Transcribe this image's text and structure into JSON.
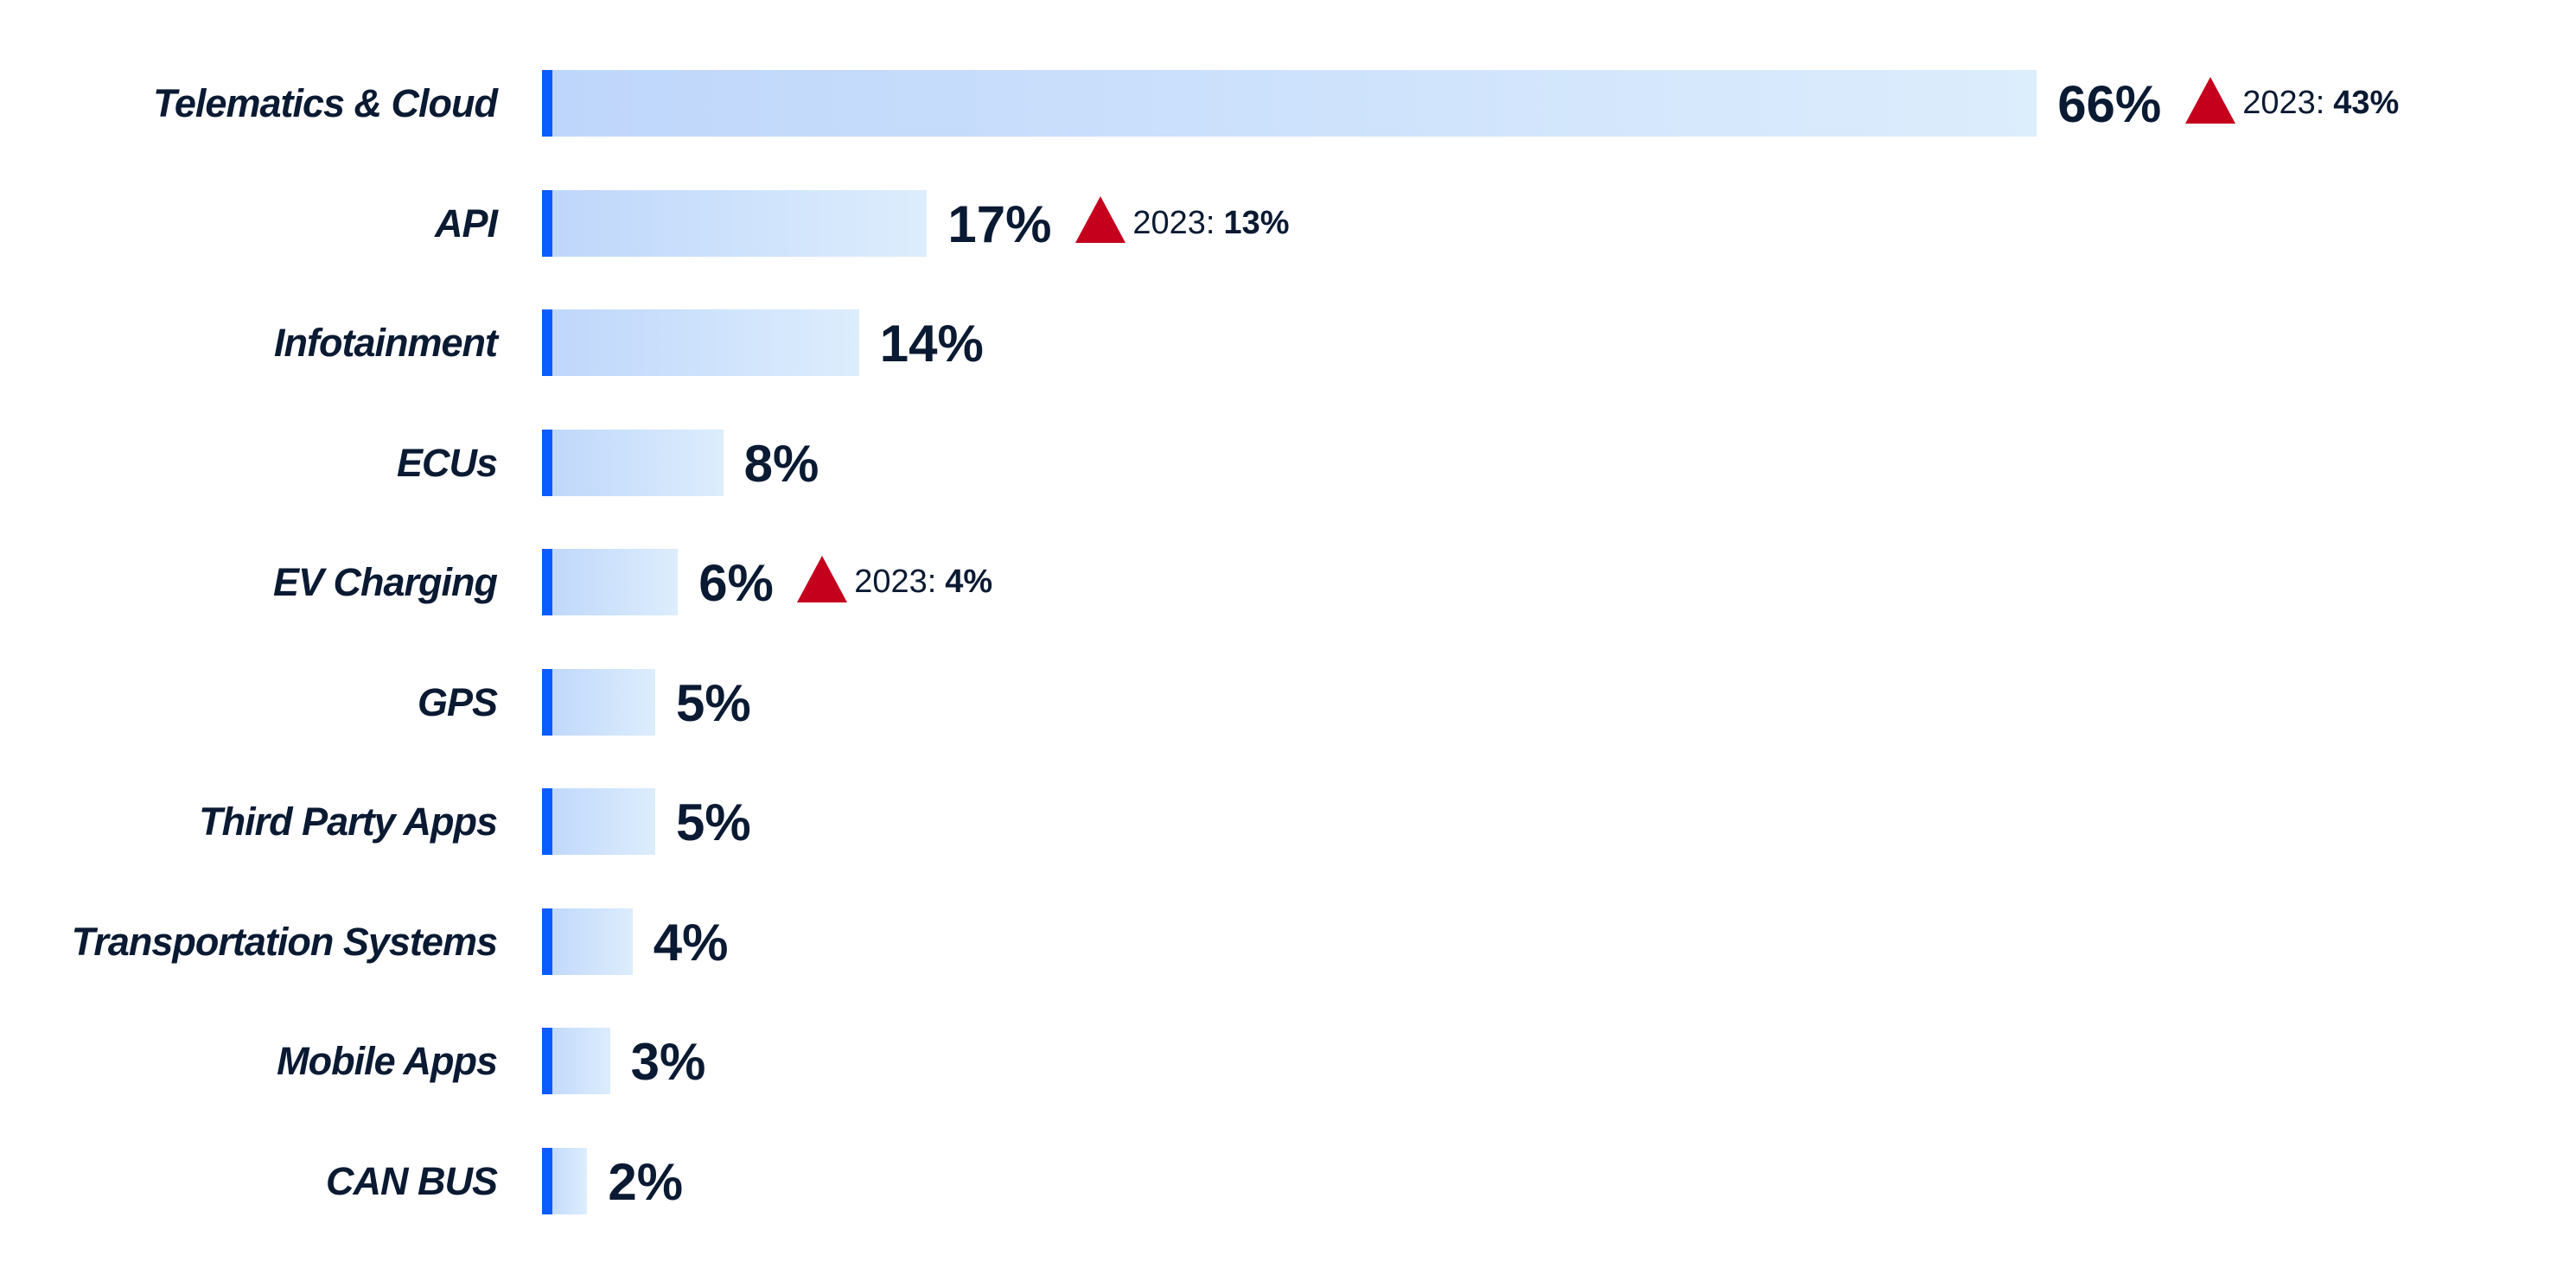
{
  "chart_data": {
    "type": "bar",
    "orientation": "horizontal",
    "categories": [
      "Telematics & Cloud",
      "API",
      "Infotainment",
      "ECUs",
      "EV Charging",
      "GPS",
      "Third Party Apps",
      "Transportation Systems",
      "Mobile Apps",
      "CAN BUS"
    ],
    "values": [
      66,
      17,
      14,
      8,
      6,
      5,
      5,
      4,
      3,
      2
    ],
    "value_labels": [
      "66%",
      "17%",
      "14%",
      "8%",
      "6%",
      "5%",
      "5%",
      "4%",
      "3%",
      "2%"
    ],
    "unit": "%",
    "comparisons": [
      {
        "category_index": 0,
        "year_label": "2023:",
        "value_label": "43%",
        "value": 43,
        "trend": "up"
      },
      {
        "category_index": 1,
        "year_label": "2023:",
        "value_label": "13%",
        "value": 13,
        "trend": "up"
      },
      {
        "category_index": 4,
        "year_label": "2023:",
        "value_label": "4%",
        "value": 4,
        "trend": "up"
      }
    ],
    "title": "",
    "xlabel": "",
    "ylabel": "",
    "grid": false,
    "colors": {
      "bar_start": "#bed6fb",
      "bar_end": "#dcedfc",
      "bar_edge": "#0a5cff",
      "text": "#0b1a33",
      "trend_up": "#c4001d"
    }
  }
}
